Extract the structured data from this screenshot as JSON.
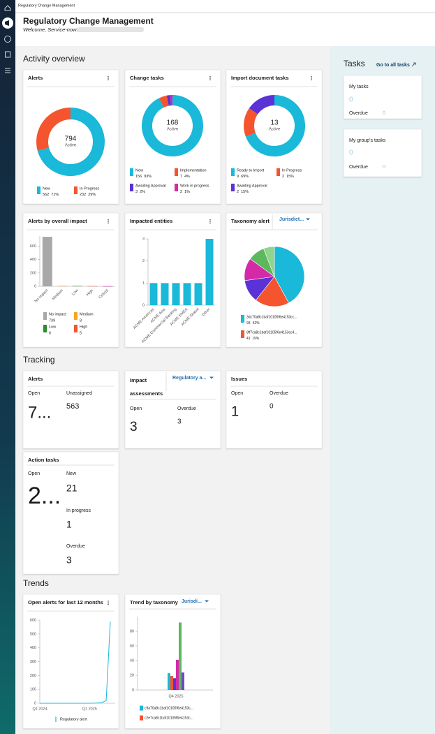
{
  "breadcrumb": "Regulatory Change Management",
  "header": {
    "title": "Regulatory Change Management",
    "subtitle": "Welcome, Service-now:"
  },
  "activity_overview": {
    "title": "Activity overview",
    "alerts": {
      "type": "donut",
      "title": "Alerts",
      "total": 794,
      "total_label": "Active",
      "categories": [
        "New",
        "In Progress"
      ],
      "values": [
        562,
        232
      ],
      "percent_labels": [
        "71%",
        "29%"
      ],
      "colors": [
        "#1ab8d9",
        "#f4552f"
      ]
    },
    "change_tasks": {
      "type": "donut",
      "title": "Change tasks",
      "total": 168,
      "total_label": "Active",
      "categories": [
        "New",
        "Implementation",
        "Awaiting Approval",
        "Work in progress"
      ],
      "values": [
        156,
        7,
        3,
        2
      ],
      "percent_labels": [
        "93%",
        "4%",
        "2%",
        "1%"
      ],
      "colors": [
        "#1ab8d9",
        "#f4552f",
        "#5b32d6",
        "#d42aa8"
      ]
    },
    "import_document_tasks": {
      "type": "donut",
      "title": "Import document tasks",
      "total": 13,
      "total_label": "Active",
      "categories": [
        "Ready to Import",
        "In Progress",
        "Awaiting Approval"
      ],
      "values": [
        9,
        2,
        2
      ],
      "percent_labels": [
        "69%",
        "15%",
        "15%"
      ],
      "colors": [
        "#1ab8d9",
        "#f4552f",
        "#5b32d6"
      ]
    },
    "alerts_by_overall_impact": {
      "type": "bar",
      "title": "Alerts by overall impact",
      "categories": [
        "No impact",
        "Medium",
        "Low",
        "High",
        "Critical"
      ],
      "values": [
        739,
        8,
        6,
        5,
        2
      ],
      "colors": [
        "#a8a8a8",
        "#f5a623",
        "#2e8b2e",
        "#f4552f",
        "#d42aa8"
      ],
      "ylim": [
        0,
        750
      ],
      "yticks": [
        0,
        200,
        400,
        600
      ]
    },
    "impacted_entities": {
      "type": "bar",
      "title": "Impacted entities",
      "categories": [
        "ACME Americas",
        "ACME Asia",
        "ACME Commercial Banking",
        "ACME EMEA",
        "ACME Global",
        "Other"
      ],
      "values": [
        1,
        1,
        1,
        1,
        1,
        3
      ],
      "color": "#1ab8d9",
      "ylim": [
        0,
        3
      ],
      "yticks": [
        0,
        1,
        2,
        3
      ]
    },
    "taxonomy_alert": {
      "type": "pie",
      "title": "Taxonomy alert",
      "filter": "Jurisdict...",
      "categories": [
        "3dc70a8c1baf10105f6e4153cc...",
        "8ff7ca8c1baf10105f6e4153cc4...",
        null,
        null,
        null,
        null
      ],
      "values": [
        93,
        41,
        27,
        27,
        20,
        13
      ],
      "percent_labels": [
        "42%",
        "19%",
        null,
        null,
        null,
        null
      ],
      "colors": [
        "#1ab8d9",
        "#f4552f",
        "#5b32d6",
        "#d42aa8",
        "#5cb85c",
        "#8fd48f"
      ]
    }
  },
  "tracking": {
    "title": "Tracking",
    "alerts": {
      "title": "Alerts",
      "open_label": "Open",
      "open": "7...",
      "unassigned_label": "Unassigned",
      "unassigned": 563
    },
    "impact_assessments": {
      "title": "Impact assessments",
      "filter": "Regulatory a...",
      "open_label": "Open",
      "open": 3,
      "overdue_label": "Overdue",
      "overdue": 3
    },
    "issues": {
      "title": "Issues",
      "open_label": "Open",
      "open": 1,
      "overdue_label": "Overdue",
      "overdue": 0
    },
    "action_tasks": {
      "title": "Action tasks",
      "open_label": "Open",
      "open": "2...",
      "new_label": "New",
      "new": 21,
      "in_progress_label": "In progress",
      "in_progress": 1,
      "overdue_label": "Overdue",
      "overdue": 3
    }
  },
  "trends": {
    "title": "Trends",
    "open_alerts": {
      "type": "line",
      "title": "Open alerts for last 12 months",
      "categories": [
        "Q1 2024",
        null,
        null,
        null,
        null,
        null,
        null,
        null,
        null,
        null,
        null,
        null,
        "Q1 2025",
        null,
        null,
        null,
        null,
        null
      ],
      "series": [
        {
          "name": "Regulatory alert",
          "color": "#1ab8d9",
          "values": [
            0,
            0,
            0,
            0,
            0,
            0,
            0,
            0,
            0,
            0,
            0,
            0,
            0,
            1,
            3,
            5,
            20,
            590
          ]
        }
      ],
      "ylim": [
        0,
        600
      ],
      "yticks": [
        0,
        100,
        200,
        300,
        400,
        500,
        600
      ]
    },
    "trend_by_taxonomy": {
      "type": "bar",
      "title": "Trend by taxonomy",
      "filter": "Jurisdi...",
      "categories": [
        "Q4 2025"
      ],
      "series": [
        {
          "name": "c9a70a8c1baf10105f6e4153c...",
          "color": "#1ab8d9",
          "values": [
            23
          ]
        },
        {
          "name": "c2e7ca8c1baf10105f6e4153c...",
          "color": "#f4552f",
          "values": [
            19
          ]
        },
        {
          "name": null,
          "color": "#5b32d6",
          "values": [
            16
          ]
        },
        {
          "name": null,
          "color": "#d42aa8",
          "values": [
            41
          ]
        },
        {
          "name": null,
          "color": "#5cb85c",
          "values": [
            92
          ]
        },
        {
          "name": null,
          "color": "#6a4bc4",
          "values": [
            24
          ]
        }
      ],
      "ylim": [
        0,
        100
      ],
      "yticks": [
        0,
        20,
        40,
        60,
        80
      ]
    }
  },
  "tasks": {
    "title": "Tasks",
    "link": "Go to all tasks",
    "my_tasks": {
      "title": "My tasks",
      "count": 0,
      "overdue_label": "Overdue",
      "overdue": 0
    },
    "group_tasks": {
      "title": "My group's tasks",
      "count": 0,
      "overdue_label": "Overdue",
      "overdue": 0
    }
  }
}
